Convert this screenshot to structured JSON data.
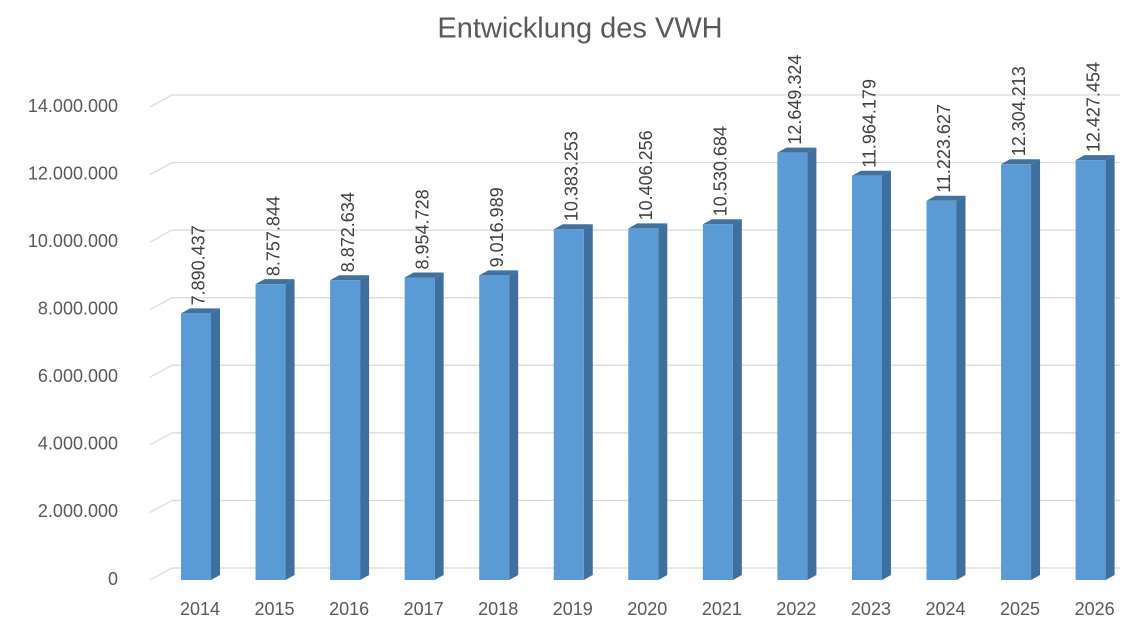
{
  "chart_data": {
    "type": "bar3d",
    "title": "Entwicklung des VWH",
    "categories": [
      "2014",
      "2015",
      "2016",
      "2017",
      "2018",
      "2019",
      "2020",
      "2021",
      "2022",
      "2023",
      "2024",
      "2025",
      "2026"
    ],
    "values": [
      7890437,
      8757844,
      8872634,
      8954728,
      9016989,
      10383253,
      10406256,
      10530684,
      12649324,
      11964179,
      11223627,
      12304213,
      12427454
    ],
    "value_labels": [
      "7.890.437",
      "8.757.844",
      "8.872.634",
      "8.954.728",
      "9.016.989",
      "10.383.253",
      "10.406.256",
      "10.530.684",
      "12.649.324",
      "11.964.179",
      "11.223.627",
      "12.304.213",
      "12.427.454"
    ],
    "color": "#5b9bd5",
    "ylim": [
      0,
      14000000
    ],
    "yticks": [
      0,
      {
        "value": 2000000,
        "label": "2.000.000"
      },
      {
        "value": 4000000,
        "label": "4.000.000"
      },
      {
        "value": 6000000,
        "label": "6.000.000"
      },
      {
        "value": 8000000,
        "label": "8.000.000"
      },
      {
        "value": 10000000,
        "label": "10.000.000"
      },
      {
        "value": 12000000,
        "label": "12.000.000"
      },
      {
        "value": 14000000,
        "label": "14.000.000"
      }
    ],
    "grid": true
  }
}
